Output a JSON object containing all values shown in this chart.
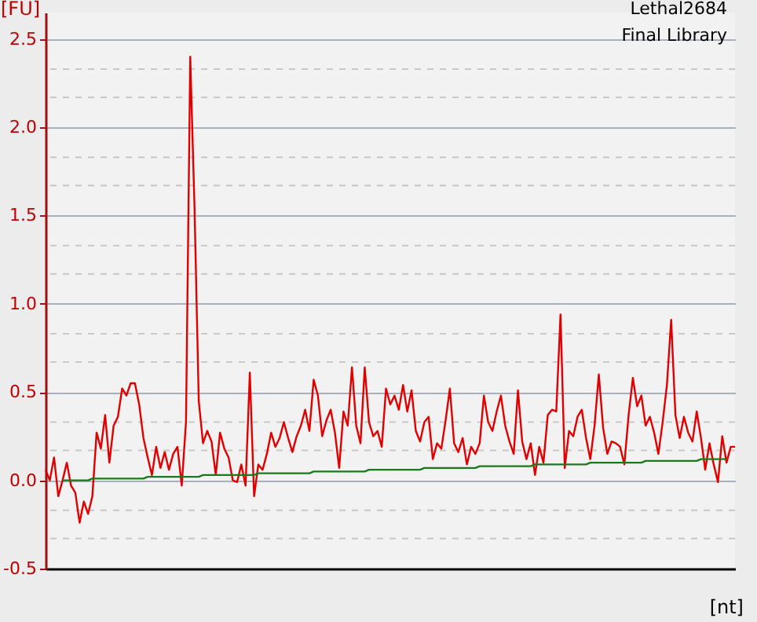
{
  "chart_data": {
    "type": "line",
    "title": "Lethal2684",
    "subtitle": "Final Library",
    "xlabel": "[nt]",
    "ylabel": "[FU]",
    "categories": [
      null,
      null,
      null,
      null,
      null,
      null,
      null,
      null,
      null,
      null,
      null,
      null,
      null,
      null,
      null,
      null,
      null,
      null,
      null,
      null,
      null,
      null,
      null,
      null,
      null,
      null,
      null,
      null,
      null,
      null,
      null,
      null,
      null,
      null,
      null,
      null,
      null,
      null,
      null,
      null,
      null,
      null,
      null,
      null,
      null,
      null,
      null,
      null,
      null,
      null,
      null,
      null,
      null,
      null,
      null,
      null,
      null,
      null,
      null,
      null,
      null,
      null,
      null,
      null,
      null,
      null,
      null,
      null,
      null,
      null,
      null,
      null,
      null,
      null,
      null,
      null,
      null,
      null,
      null,
      null,
      null,
      null,
      null,
      null,
      null,
      null,
      null,
      null,
      null,
      null,
      null,
      null,
      null,
      null,
      null,
      null,
      null,
      null,
      null,
      null,
      null,
      null,
      null,
      null,
      null,
      null,
      null,
      null,
      null,
      null,
      null,
      null,
      null,
      null,
      null,
      null,
      null,
      null,
      null,
      null,
      null,
      null,
      null,
      null,
      null,
      null,
      null,
      null,
      null,
      null,
      null,
      null,
      null,
      null,
      null,
      null,
      null,
      null,
      null,
      null,
      null,
      null,
      null,
      null,
      null,
      null,
      null,
      null,
      null,
      null,
      null,
      null,
      null,
      null,
      null,
      null,
      null,
      null,
      null,
      null,
      null,
      null,
      null
    ],
    "ylim": [
      -0.5,
      2.65
    ],
    "yticks": [
      -0.5,
      {
        "value": -0.33,
        "label": null
      },
      {
        "value": -0.17,
        "label": null
      },
      {
        "value": 0,
        "label": "0.0"
      },
      {
        "value": 0.17,
        "label": null
      },
      {
        "value": 0.33,
        "label": null
      },
      0.5,
      {
        "value": 0.67,
        "label": null
      },
      {
        "value": 0.83,
        "label": null
      },
      {
        "value": 1,
        "label": "1.0"
      },
      {
        "value": 1.17,
        "label": null
      },
      {
        "value": 1.33,
        "label": null
      },
      1.5,
      {
        "value": 1.67,
        "label": null
      },
      {
        "value": 1.83,
        "label": null
      },
      {
        "value": 2,
        "label": "2.0"
      },
      {
        "value": 2.17,
        "label": null
      },
      {
        "value": 2.33,
        "label": null
      },
      2.5
    ],
    "grid": "y",
    "tick_labels": "y",
    "marker": "none",
    "line_style": "solid",
    "series": [
      {
        "color": "#e00000",
        "values": [
          0.06,
          0,
          0.13,
          -0.09,
          0,
          0.1,
          -0.03,
          -0.07,
          -0.24,
          -0.12,
          -0.19,
          -0.09,
          0.27,
          0.18,
          0.37,
          0.1,
          0.31,
          0.36,
          0.52,
          0.48,
          0.55,
          0.55,
          0.43,
          0.24,
          0.13,
          0.03,
          0.19,
          0.07,
          0.16,
          0.06,
          0.15,
          0.19,
          -0.03,
          0.33,
          2.4,
          1.55,
          0.45,
          0.21,
          0.28,
          0.22,
          0.03,
          0.27,
          0.18,
          0.13,
          0,
          -0.01,
          0.09,
          -0.03,
          0.61,
          -0.09,
          0.09,
          0.06,
          0.15,
          0.27,
          0.19,
          0.24,
          0.33,
          0.24,
          0.16,
          0.25,
          0.31,
          0.4,
          0.28,
          0.57,
          0.48,
          0.25,
          0.34,
          0.4,
          0.27,
          0.07,
          0.39,
          0.31,
          0.64,
          0.31,
          0.21,
          0.64,
          0.33,
          0.25,
          0.28,
          0.19,
          0.52,
          0.43,
          0.48,
          0.4,
          0.54,
          0.39,
          0.51,
          0.28,
          0.22,
          0.33,
          0.36,
          0.12,
          0.21,
          0.18,
          0.34,
          0.52,
          0.21,
          0.16,
          0.24,
          0.09,
          0.19,
          0.15,
          0.21,
          0.48,
          0.33,
          0.28,
          0.39,
          0.48,
          0.31,
          0.22,
          0.15,
          0.51,
          0.22,
          0.12,
          0.21,
          0.03,
          0.19,
          0.1,
          0.37,
          0.4,
          0.39,
          0.94,
          0.07,
          0.28,
          0.25,
          0.36,
          0.4,
          0.24,
          0.12,
          0.31,
          0.6,
          0.3,
          0.15,
          0.22,
          0.21,
          0.19,
          0.09,
          0.37,
          0.58,
          0.42,
          0.48,
          0.31,
          0.36,
          0.27,
          0.15,
          0.33,
          0.54,
          0.91,
          0.37,
          0.24,
          0.36,
          0.27,
          0.22,
          0.39,
          0.24,
          0.06,
          0.21,
          0.09,
          -0.01,
          0.25,
          0.1,
          0.19,
          0.19
        ]
      },
      {
        "color": "#1a7a1a",
        "values": [
          null,
          null,
          null,
          null,
          0,
          0,
          0,
          0,
          0,
          0,
          0,
          0.01,
          0.01,
          0.01,
          0.01,
          0.01,
          0.01,
          0.01,
          0.01,
          0.01,
          0.01,
          0.01,
          0.01,
          0.01,
          0.02,
          0.02,
          0.02,
          0.02,
          0.02,
          0.02,
          0.02,
          0.02,
          0.02,
          0.02,
          0.02,
          0.02,
          0.02,
          0.03,
          0.03,
          0.03,
          0.03,
          0.03,
          0.03,
          0.03,
          0.03,
          0.03,
          0.03,
          0.03,
          0.03,
          0.03,
          0.04,
          0.04,
          0.04,
          0.04,
          0.04,
          0.04,
          0.04,
          0.04,
          0.04,
          0.04,
          0.04,
          0.04,
          0.04,
          0.05,
          0.05,
          0.05,
          0.05,
          0.05,
          0.05,
          0.05,
          0.05,
          0.05,
          0.05,
          0.05,
          0.05,
          0.05,
          0.06,
          0.06,
          0.06,
          0.06,
          0.06,
          0.06,
          0.06,
          0.06,
          0.06,
          0.06,
          0.06,
          0.06,
          0.06,
          0.07,
          0.07,
          0.07,
          0.07,
          0.07,
          0.07,
          0.07,
          0.07,
          0.07,
          0.07,
          0.07,
          0.07,
          0.07,
          0.08,
          0.08,
          0.08,
          0.08,
          0.08,
          0.08,
          0.08,
          0.08,
          0.08,
          0.08,
          0.08,
          0.08,
          0.08,
          0.09,
          0.09,
          0.09,
          0.09,
          0.09,
          0.09,
          0.09,
          0.09,
          0.09,
          0.09,
          0.09,
          0.09,
          0.09,
          0.1,
          0.1,
          0.1,
          0.1,
          0.1,
          0.1,
          0.1,
          0.1,
          0.1,
          0.1,
          0.1,
          0.1,
          0.1,
          0.11,
          0.11,
          0.11,
          0.11,
          0.11,
          0.11,
          0.11,
          0.11,
          0.11,
          0.11,
          0.11,
          0.11,
          0.11,
          0.12,
          0.12,
          0.12,
          0.12,
          0.12,
          0.12,
          0.12,
          null,
          null
        ]
      }
    ]
  }
}
